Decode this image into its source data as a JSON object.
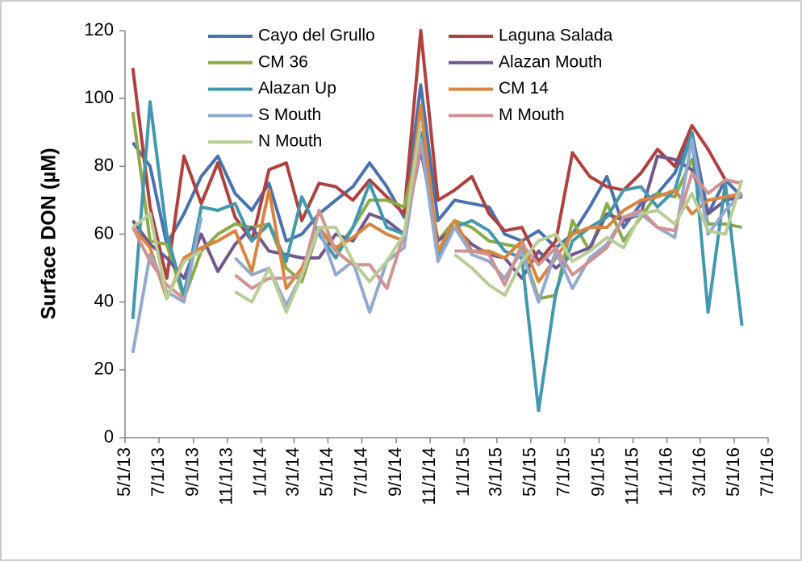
{
  "chart_data": {
    "type": "line",
    "y_label": "Surface DON (µM)",
    "x": [
      "5/15/13",
      "6/15/13",
      "7/15/13",
      "8/15/13",
      "9/15/13",
      "10/15/13",
      "11/15/13",
      "12/15/13",
      "1/15/14",
      "2/15/14",
      "3/15/14",
      "4/15/14",
      "5/15/14",
      "6/15/14",
      "7/15/14",
      "8/15/14",
      "9/15/14",
      "10/15/14",
      "11/15/14",
      "12/15/14",
      "1/15/15",
      "2/15/15",
      "3/15/15",
      "4/15/15",
      "5/15/15",
      "6/15/15",
      "7/15/15",
      "8/15/15",
      "9/15/15",
      "10/15/15",
      "11/15/15",
      "12/15/15",
      "1/15/16",
      "2/15/16",
      "3/15/16",
      "4/15/16",
      "5/15/16"
    ],
    "xlim": [
      "5/1/13",
      "7/1/16"
    ],
    "xticks": [
      "5/1/13",
      "7/1/13",
      "9/1/13",
      "11/1/13",
      "1/1/14",
      "3/1/14",
      "5/1/14",
      "7/1/14",
      "9/1/14",
      "11/1/14",
      "1/1/15",
      "3/1/15",
      "5/1/15",
      "7/1/15",
      "9/1/15",
      "11/1/15",
      "1/1/16",
      "3/1/16",
      "5/1/16",
      "7/1/16"
    ],
    "ylim": [
      0,
      120
    ],
    "yticks": [
      0,
      20,
      40,
      60,
      80,
      100,
      120
    ],
    "series": [
      {
        "name": "Cayo del Grullo",
        "color": "#4a72b0",
        "values": [
          87,
          80,
          57,
          66,
          77,
          83,
          72,
          67,
          75,
          58,
          60,
          66,
          70,
          74,
          81,
          74,
          65,
          104,
          64,
          70,
          69,
          68,
          60,
          58,
          61,
          56,
          60,
          68,
          77,
          62,
          69,
          72,
          78,
          90,
          66,
          76,
          71
        ]
      },
      {
        "name": "Laguna Salada",
        "color": "#b0413e",
        "values": [
          109,
          68,
          47,
          83,
          69,
          81,
          65,
          58,
          79,
          81,
          64,
          75,
          74,
          70,
          76,
          71,
          66,
          120,
          70,
          73,
          77,
          66,
          61,
          62,
          52,
          58,
          84,
          77,
          74,
          73,
          78,
          85,
          80,
          92,
          85,
          76,
          75
        ]
      },
      {
        "name": "CM 36",
        "color": "#8aab46",
        "values": [
          96,
          58,
          57,
          41,
          55,
          60,
          63,
          62,
          63,
          50,
          46,
          62,
          55,
          62,
          70,
          70,
          68,
          88,
          58,
          64,
          62,
          58,
          57,
          56,
          41,
          42,
          64,
          55,
          69,
          58,
          65,
          72,
          71,
          82,
          63,
          63,
          62
        ]
      },
      {
        "name": "Alazan Mouth",
        "color": "#71588f",
        "values": [
          64,
          57,
          53,
          47,
          60,
          49,
          57,
          62,
          55,
          54,
          53,
          53,
          60,
          58,
          66,
          64,
          60,
          85,
          58,
          62,
          57,
          54,
          53,
          47,
          55,
          50,
          54,
          56,
          66,
          64,
          66,
          83,
          82,
          79,
          66,
          70,
          71
        ]
      },
      {
        "name": "Alazan Up",
        "color": "#4198af",
        "values": [
          35,
          99,
          60,
          42,
          68,
          67,
          69,
          58,
          63,
          52,
          71,
          60,
          53,
          62,
          75,
          62,
          60,
          90,
          53,
          62,
          64,
          61,
          55,
          53,
          8,
          43,
          58,
          62,
          65,
          73,
          74,
          68,
          73,
          90,
          37,
          75,
          33
        ]
      },
      {
        "name": "CM 14",
        "color": "#db843d",
        "values": [
          62,
          56,
          41,
          53,
          56,
          58,
          61,
          49,
          73,
          44,
          50,
          62,
          56,
          59,
          63,
          60,
          58,
          98,
          55,
          64,
          55,
          55,
          53,
          58,
          46,
          53,
          60,
          62,
          62,
          67,
          70,
          71,
          73,
          66,
          70,
          71,
          72
        ]
      },
      {
        "name": "S Mouth",
        "color": "#93a9cf",
        "values": [
          25,
          54,
          43,
          40,
          65,
          null,
          53,
          48,
          50,
          39,
          48,
          62,
          48,
          52,
          37,
          52,
          56,
          88,
          52,
          62,
          54,
          52,
          47,
          55,
          40,
          55,
          44,
          53,
          57,
          65,
          66,
          62,
          59,
          88,
          60,
          67,
          72
        ]
      },
      {
        "name": "M Mouth",
        "color": "#d19392",
        "values": [
          62,
          52,
          45,
          41,
          null,
          null,
          48,
          44,
          47,
          47,
          48,
          67,
          55,
          51,
          51,
          44,
          60,
          86,
          null,
          55,
          55,
          54,
          45,
          57,
          51,
          56,
          48,
          52,
          56,
          65,
          67,
          62,
          61,
          78,
          72,
          76,
          75
        ]
      },
      {
        "name": "N Mouth",
        "color": "#b9cd96",
        "values": [
          62,
          66,
          41,
          52,
          55,
          null,
          43,
          40,
          50,
          37,
          48,
          62,
          62,
          52,
          46,
          52,
          60,
          93,
          null,
          54,
          50,
          45,
          42,
          52,
          58,
          60,
          52,
          55,
          59,
          56,
          66,
          67,
          63,
          72,
          61,
          60,
          76
        ]
      }
    ]
  }
}
